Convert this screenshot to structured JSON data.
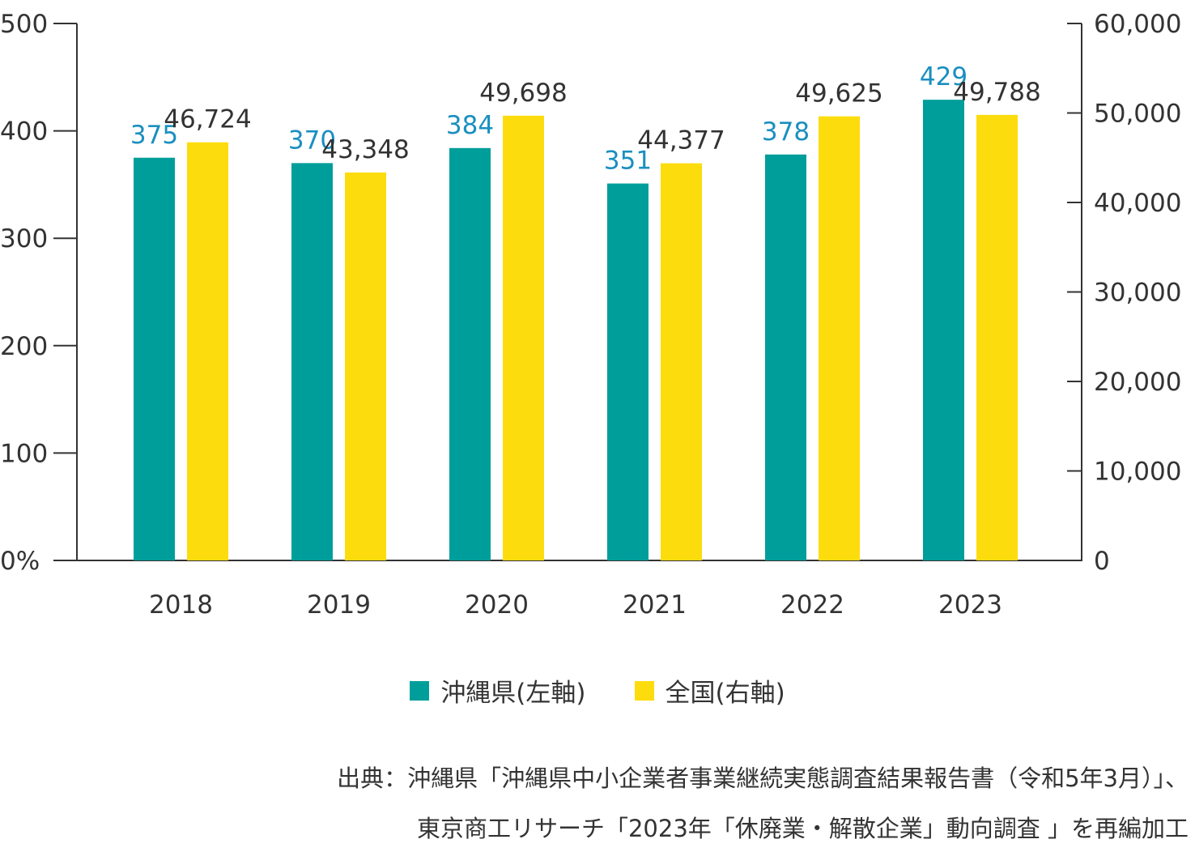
{
  "chart_data": {
    "type": "bar",
    "categories": [
      "2018",
      "2019",
      "2020",
      "2021",
      "2022",
      "2023"
    ],
    "series": [
      {
        "name": "沖縄県(左軸)",
        "axis": "left",
        "color": "#009e9a",
        "label_color": "#1a8fc0",
        "values": [
          375,
          370,
          384,
          351,
          378,
          429
        ],
        "labels": [
          "375",
          "370",
          "384",
          "351",
          "378",
          "429"
        ]
      },
      {
        "name": "全国(右軸)",
        "axis": "right",
        "color": "#fddc0e",
        "label_color": "#333333",
        "values": [
          46724,
          43348,
          49698,
          44377,
          49625,
          49788
        ],
        "labels": [
          "46,724",
          "43,348",
          "49,698",
          "44,377",
          "49,625",
          "49,788"
        ]
      }
    ],
    "y_left": {
      "ticks": [
        0,
        100,
        200,
        300,
        400,
        500
      ],
      "tick_labels": [
        "0%",
        "100",
        "200",
        "300",
        "400",
        "500"
      ],
      "ylim": [
        0,
        500
      ]
    },
    "y_right": {
      "ticks": [
        0,
        10000,
        20000,
        30000,
        40000,
        50000,
        60000
      ],
      "tick_labels": [
        "0",
        "10,000",
        "20,000",
        "30,000",
        "40,000",
        "50,000",
        "60,000"
      ],
      "ylim": [
        0,
        60000
      ]
    },
    "grid": false,
    "legend_position": "bottom-center"
  },
  "source_line1": "出典：沖縄県「沖縄県中小企業者事業継続実態調査結果報告書（令和5年3月）」、",
  "source_line2": "東京商工リサーチ「2023年「休廃業・解散企業」動向調査 」を再編加工"
}
